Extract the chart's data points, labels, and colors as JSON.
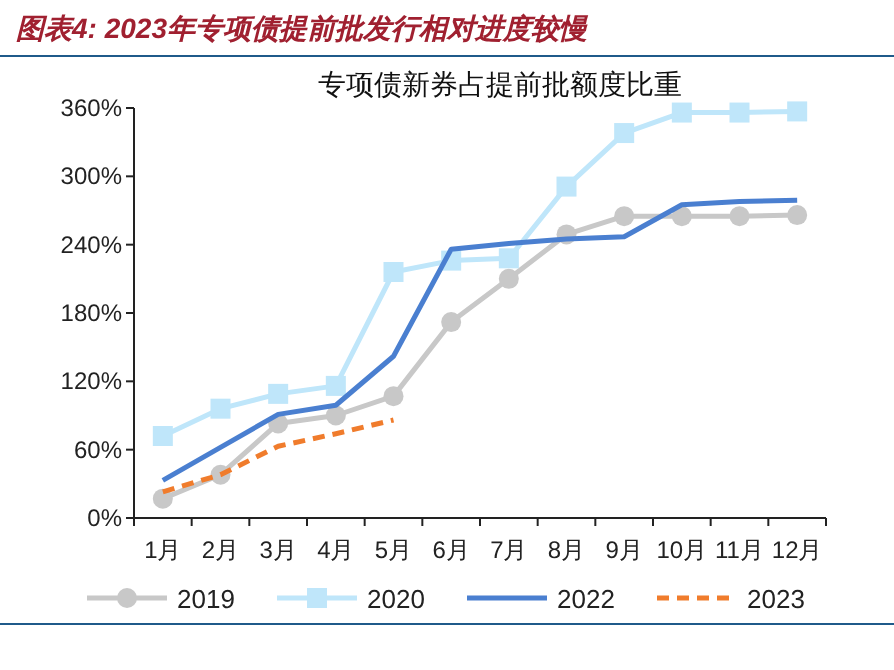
{
  "chart_data": {
    "type": "line",
    "title": "图表4: 2023年专项债提前批发行相对进度较慢",
    "subtitle": "专项债新券占提前批额度比重",
    "categories": [
      "1月",
      "2月",
      "3月",
      "4月",
      "5月",
      "6月",
      "7月",
      "8月",
      "9月",
      "10月",
      "11月",
      "12月"
    ],
    "series": [
      {
        "name": "2019",
        "color": "#c8c8c8",
        "marker": "circle",
        "line_style": "solid",
        "values": [
          17,
          38,
          83,
          90,
          107,
          172,
          210,
          249,
          265,
          265,
          265,
          266
        ]
      },
      {
        "name": "2020",
        "color": "#bfe6fa",
        "marker": "square",
        "line_style": "solid",
        "values": [
          72,
          96,
          109,
          116,
          216,
          226,
          228,
          291,
          338,
          356,
          356,
          357
        ]
      },
      {
        "name": "2022",
        "color": "#4a7fd0",
        "marker": "none",
        "line_style": "solid",
        "values": [
          33,
          62,
          91,
          99,
          142,
          236,
          241,
          245,
          247,
          275,
          278,
          279
        ]
      },
      {
        "name": "2023",
        "color": "#f07c2c",
        "marker": "none",
        "line_style": "dashed",
        "values": [
          23,
          38,
          63,
          74,
          86,
          null,
          null,
          null,
          null,
          null,
          null,
          null
        ]
      }
    ],
    "ylim": [
      0,
      360
    ],
    "yticks": [
      {
        "value": 0,
        "label": "0%"
      },
      {
        "value": 60,
        "label": "60%"
      },
      {
        "value": 120,
        "label": "120%"
      },
      {
        "value": 180,
        "label": "180%"
      },
      {
        "value": 240,
        "label": "240%"
      },
      {
        "value": 300,
        "label": "300%"
      },
      {
        "value": 360,
        "label": "360%"
      }
    ],
    "grid": false,
    "legend": "bottom"
  }
}
